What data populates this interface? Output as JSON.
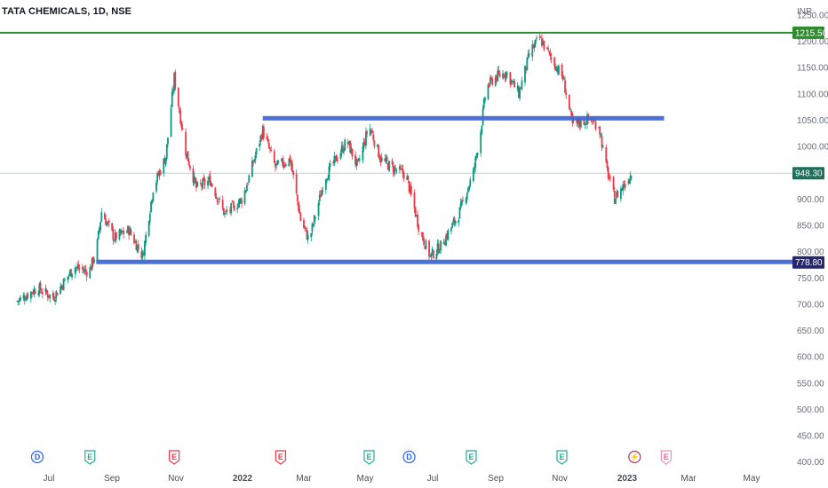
{
  "header": {
    "symbol": "TATA CHEMICALS, 1D, NSE"
  },
  "chart_data": {
    "type": "candlestick",
    "currency": "INR",
    "ylim": [
      400,
      1270
    ],
    "y_ticks": [
      1250,
      1200,
      1150,
      1100,
      1050,
      1000,
      950,
      900,
      850,
      800,
      750,
      700,
      650,
      600,
      550,
      500,
      450,
      400
    ],
    "y_tick_labels": [
      "1250.00",
      "1200.00",
      "1150.00",
      "1100.00",
      "1050.00",
      "1000.00",
      "950.00",
      "900.00",
      "850.00",
      "800.00",
      "750.00",
      "700.00",
      "650.00",
      "600.00",
      "550.00",
      "500.00",
      "450.00",
      "400.00"
    ],
    "x_labels": [
      "Jul",
      "Sep",
      "Nov",
      "2022",
      "Mar",
      "May",
      "Jul",
      "Sep",
      "Nov",
      "2023",
      "Mar",
      "May"
    ],
    "bold_x_labels": [
      "2022",
      "2023"
    ],
    "price_path": [
      [
        "2021-06-01",
        705
      ],
      [
        "2021-06-20",
        730
      ],
      [
        "2021-07-05",
        712
      ],
      [
        "2021-07-25",
        770
      ],
      [
        "2021-08-08",
        760
      ],
      [
        "2021-08-15",
        800
      ],
      [
        "2021-08-20",
        875
      ],
      [
        "2021-09-01",
        825
      ],
      [
        "2021-09-15",
        840
      ],
      [
        "2021-09-28",
        790
      ],
      [
        "2021-10-08",
        920
      ],
      [
        "2021-10-20",
        980
      ],
      [
        "2021-10-28",
        1130
      ],
      [
        "2021-11-08",
        990
      ],
      [
        "2021-11-18",
        920
      ],
      [
        "2021-12-01",
        935
      ],
      [
        "2021-12-15",
        870
      ],
      [
        "2022-01-01",
        900
      ],
      [
        "2022-01-20",
        1030
      ],
      [
        "2022-02-01",
        960
      ],
      [
        "2022-02-15",
        975
      ],
      [
        "2022-02-25",
        860
      ],
      [
        "2022-03-05",
        820
      ],
      [
        "2022-03-20",
        940
      ],
      [
        "2022-04-10",
        1010
      ],
      [
        "2022-04-20",
        960
      ],
      [
        "2022-05-01",
        1040
      ],
      [
        "2022-05-12",
        975
      ],
      [
        "2022-05-22",
        960
      ],
      [
        "2022-06-05",
        945
      ],
      [
        "2022-06-18",
        840
      ],
      [
        "2022-06-28",
        790
      ],
      [
        "2022-07-08",
        810
      ],
      [
        "2022-07-25",
        870
      ],
      [
        "2022-08-08",
        950
      ],
      [
        "2022-08-15",
        1030
      ],
      [
        "2022-08-20",
        1110
      ],
      [
        "2022-08-28",
        1130
      ],
      [
        "2022-09-08",
        1140
      ],
      [
        "2022-09-20",
        1100
      ],
      [
        "2022-10-01",
        1180
      ],
      [
        "2022-10-10",
        1205
      ],
      [
        "2022-10-20",
        1170
      ],
      [
        "2022-11-01",
        1130
      ],
      [
        "2022-11-10",
        1040
      ],
      [
        "2022-11-25",
        1050
      ],
      [
        "2022-12-05",
        1040
      ],
      [
        "2022-12-12",
        960
      ],
      [
        "2022-12-20",
        900
      ],
      [
        "2023-01-05",
        948
      ]
    ],
    "last_price": 948.3,
    "last_price_label": "948.30",
    "lines": [
      {
        "name": "resistance-line",
        "label": "1215.50",
        "value": 1215.5,
        "color": "#2e8b2e",
        "from": "2021-05-01",
        "to": "2023-06-15",
        "axis_badge": true
      },
      {
        "name": "upper-zone",
        "value": 1052,
        "color": "#4169d6",
        "from": "2022-01-20",
        "to": "2023-02-05"
      },
      {
        "name": "support-zone",
        "label": "778.80",
        "value": 778.8,
        "color": "#4169d6",
        "from": "2021-08-15",
        "to": "2023-06-08",
        "axis_badge": true,
        "badge_color": "#27276e"
      }
    ],
    "events": [
      {
        "type": "dividend",
        "symbol": "D",
        "date": "2021-06-20",
        "color": "#2962ff"
      },
      {
        "type": "earnings",
        "symbol": "E",
        "date": "2021-08-09",
        "color": "#22ab94"
      },
      {
        "type": "earnings",
        "symbol": "E",
        "date": "2021-10-28",
        "color": "#f23645"
      },
      {
        "type": "earnings",
        "symbol": "E",
        "date": "2022-02-06",
        "color": "#f23645"
      },
      {
        "type": "earnings",
        "symbol": "E",
        "date": "2022-05-01",
        "color": "#22ab94"
      },
      {
        "type": "dividend",
        "symbol": "D",
        "date": "2022-06-08",
        "color": "#2962ff"
      },
      {
        "type": "earnings",
        "symbol": "E",
        "date": "2022-08-06",
        "color": "#22ab94"
      },
      {
        "type": "earnings",
        "symbol": "E",
        "date": "2022-10-31",
        "color": "#22ab94"
      },
      {
        "type": "split",
        "symbol": "⚡",
        "date": "2023-01-08",
        "color": "#a23a6f"
      },
      {
        "type": "earnings-upcoming",
        "symbol": "E",
        "date": "2023-02-07",
        "color": "#f06292"
      }
    ],
    "colors": {
      "up": "#089981",
      "down": "#f23645"
    }
  }
}
